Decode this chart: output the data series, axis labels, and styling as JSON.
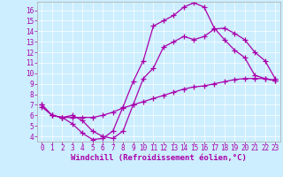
{
  "bg_color": "#cceeff",
  "line_color": "#aa00aa",
  "marker": "+",
  "markersize": 4,
  "linewidth": 0.9,
  "xlabel": "Windchill (Refroidissement éolien,°C)",
  "xlabel_fontsize": 6.5,
  "tick_fontsize": 5.5,
  "xlim": [
    -0.5,
    23.5
  ],
  "ylim": [
    3.5,
    16.8
  ],
  "xticks": [
    0,
    1,
    2,
    3,
    4,
    5,
    6,
    7,
    8,
    9,
    10,
    11,
    12,
    13,
    14,
    15,
    16,
    17,
    18,
    19,
    20,
    21,
    22,
    23
  ],
  "yticks": [
    4,
    5,
    6,
    7,
    8,
    9,
    10,
    11,
    12,
    13,
    14,
    15,
    16
  ],
  "curve1_x": [
    0,
    1,
    2,
    3,
    4,
    5,
    6,
    7,
    8,
    9,
    10,
    11,
    12,
    13,
    14,
    15,
    16,
    17,
    18,
    19,
    20,
    21,
    22,
    23
  ],
  "curve1_y": [
    7.0,
    6.0,
    5.8,
    5.2,
    4.3,
    3.7,
    3.8,
    4.5,
    6.8,
    9.2,
    11.2,
    14.5,
    15.0,
    15.5,
    16.3,
    16.7,
    16.3,
    14.3,
    13.2,
    12.2,
    11.5,
    9.8,
    9.5,
    9.3
  ],
  "curve2_x": [
    0,
    1,
    2,
    3,
    4,
    5,
    6,
    7,
    8,
    9,
    10,
    11,
    12,
    13,
    14,
    15,
    16,
    17,
    18,
    19,
    20,
    21,
    22,
    23
  ],
  "curve2_y": [
    7.0,
    6.0,
    5.8,
    6.0,
    5.5,
    4.5,
    4.0,
    3.8,
    4.5,
    7.0,
    9.5,
    10.5,
    12.5,
    13.0,
    13.5,
    13.2,
    13.5,
    14.2,
    14.3,
    13.8,
    13.2,
    12.0,
    11.2,
    9.5
  ],
  "curve3_x": [
    0,
    1,
    2,
    3,
    4,
    5,
    6,
    7,
    8,
    9,
    10,
    11,
    12,
    13,
    14,
    15,
    16,
    17,
    18,
    19,
    20,
    21,
    22,
    23
  ],
  "curve3_y": [
    6.8,
    6.0,
    5.8,
    5.8,
    5.8,
    5.8,
    6.0,
    6.3,
    6.7,
    7.0,
    7.3,
    7.6,
    7.9,
    8.2,
    8.5,
    8.7,
    8.8,
    9.0,
    9.2,
    9.4,
    9.5,
    9.5,
    9.5,
    9.3
  ]
}
